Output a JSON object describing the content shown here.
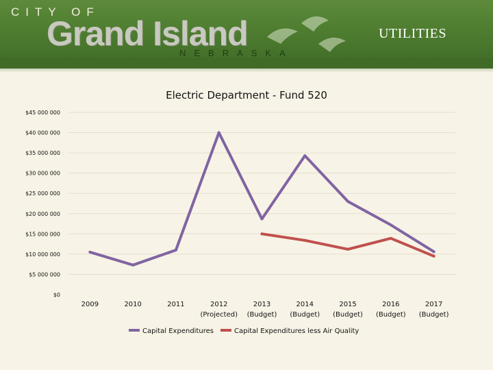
{
  "header": {
    "logo_top": "CITY OF",
    "logo_main": "Grand Island",
    "logo_sub": "NEBRASKA",
    "section_title": "UTILITIES"
  },
  "colors": {
    "series_1": "#8064a2",
    "series_2": "#c0504d",
    "banner": "#4b7a2e",
    "background": "#f7f3e6"
  },
  "icons": [
    "crane-bird-icon"
  ],
  "chart_data": {
    "type": "line",
    "title": "Electric Department - Fund 520",
    "x": [
      "2009",
      "2010",
      "2011",
      "2012",
      "2013",
      "2014",
      "2015",
      "2016",
      "2017"
    ],
    "x_sublabels": [
      "",
      "",
      "",
      "(Projected)",
      "(Budget)",
      "(Budget)",
      "(Budget)",
      "(Budget)",
      "(Budget)"
    ],
    "yticks": [
      "$0",
      "$5 000 000",
      "$10 000 000",
      "$15 000 000",
      "$20 000 000",
      "$25 000 000",
      "$30 000 000",
      "$35 000 000",
      "$40 000 000",
      "$45 000 000"
    ],
    "ylim": [
      0,
      45000000
    ],
    "grid": true,
    "legend": "bottom",
    "series": [
      {
        "name": "Capital Expenditures",
        "values": [
          10500000,
          7300000,
          11000000,
          40000000,
          18700000,
          34300000,
          23000000,
          17200000,
          10600000
        ]
      },
      {
        "name": "Capital Expenditures less Air Quality",
        "values": [
          null,
          null,
          null,
          null,
          15000000,
          13400000,
          11200000,
          13900000,
          9500000
        ]
      }
    ]
  }
}
